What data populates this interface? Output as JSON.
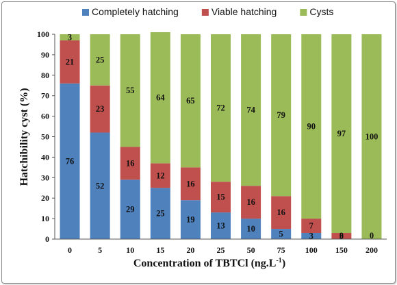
{
  "chart_data": {
    "type": "bar",
    "stacked": true,
    "categories": [
      "0",
      "5",
      "10",
      "15",
      "20",
      "25",
      "50",
      "75",
      "100",
      "150",
      "200"
    ],
    "series": [
      {
        "name": "Completely hatching",
        "color": "#4f81bd",
        "values": [
          76,
          52,
          29,
          25,
          19,
          13,
          10,
          5,
          3,
          0,
          0
        ]
      },
      {
        "name": "Viable hatching",
        "color": "#c0504d",
        "values": [
          21,
          23,
          16,
          12,
          16,
          15,
          16,
          16,
          7,
          3,
          0
        ]
      },
      {
        "name": "Cysts",
        "color": "#9bbb59",
        "values": [
          3,
          25,
          55,
          64,
          65,
          72,
          74,
          79,
          90,
          97,
          100
        ]
      }
    ],
    "data_labels": [
      [
        "76",
        "52",
        "29",
        "25",
        "19",
        "13",
        "10",
        "5",
        "3",
        "0",
        "0"
      ],
      [
        "21",
        "23",
        "16",
        "12",
        "16",
        "15",
        "16",
        "16",
        "7",
        "3",
        ""
      ],
      [
        "3",
        "25",
        "55",
        "64",
        "65",
        "72",
        "74",
        "79",
        "90",
        "97",
        "100"
      ]
    ],
    "ylim": [
      0,
      100
    ],
    "yticks": [
      0,
      10,
      20,
      30,
      40,
      50,
      60,
      70,
      80,
      90,
      100
    ],
    "ylabel": "Hatchibility cyst (%)",
    "xlabel": "Concentration of TBTCl (ng.L",
    "xlabel_superscript": "-1",
    "xlabel_suffix": ")",
    "legend_position": "top",
    "grid": false
  }
}
